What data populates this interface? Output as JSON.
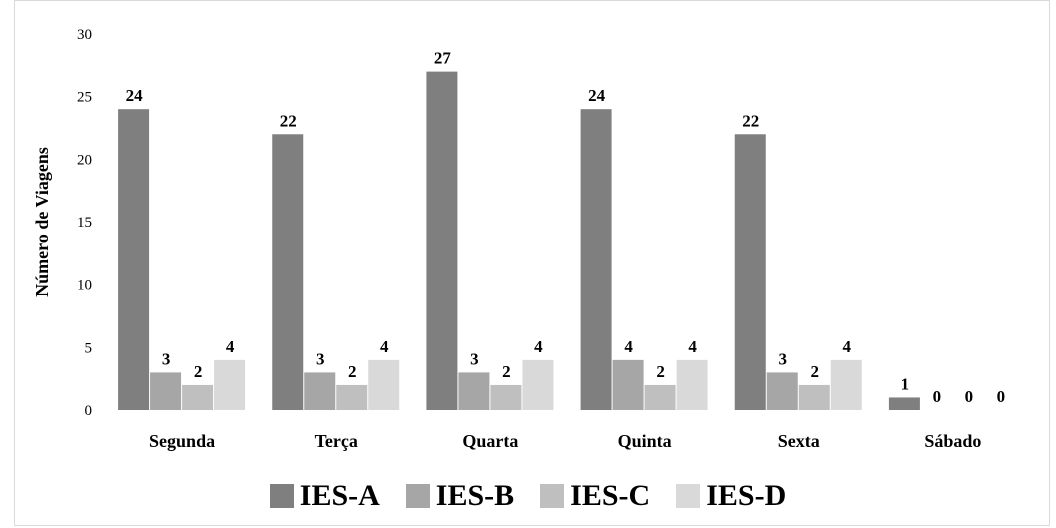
{
  "chart_data": {
    "type": "bar",
    "categories": [
      "Segunda",
      "Terça",
      "Quarta",
      "Quinta",
      "Sexta",
      "Sábado"
    ],
    "series": [
      {
        "name": "IES-A",
        "values": [
          24,
          22,
          27,
          24,
          22,
          1
        ],
        "color": "#7f7f7f"
      },
      {
        "name": "IES-B",
        "values": [
          3,
          3,
          3,
          4,
          3,
          0
        ],
        "color": "#a6a6a6"
      },
      {
        "name": "IES-C",
        "values": [
          2,
          2,
          2,
          2,
          2,
          0
        ],
        "color": "#bfbfbf"
      },
      {
        "name": "IES-D",
        "values": [
          4,
          4,
          4,
          4,
          4,
          0
        ],
        "color": "#d9d9d9"
      }
    ],
    "title": "",
    "xlabel": "",
    "ylabel": "Número de Viagens",
    "ylim": [
      0,
      30
    ],
    "yticks": [
      0,
      5,
      10,
      15,
      20,
      25,
      30
    ],
    "grid": false,
    "legend_position": "bottom",
    "data_labels": true
  }
}
